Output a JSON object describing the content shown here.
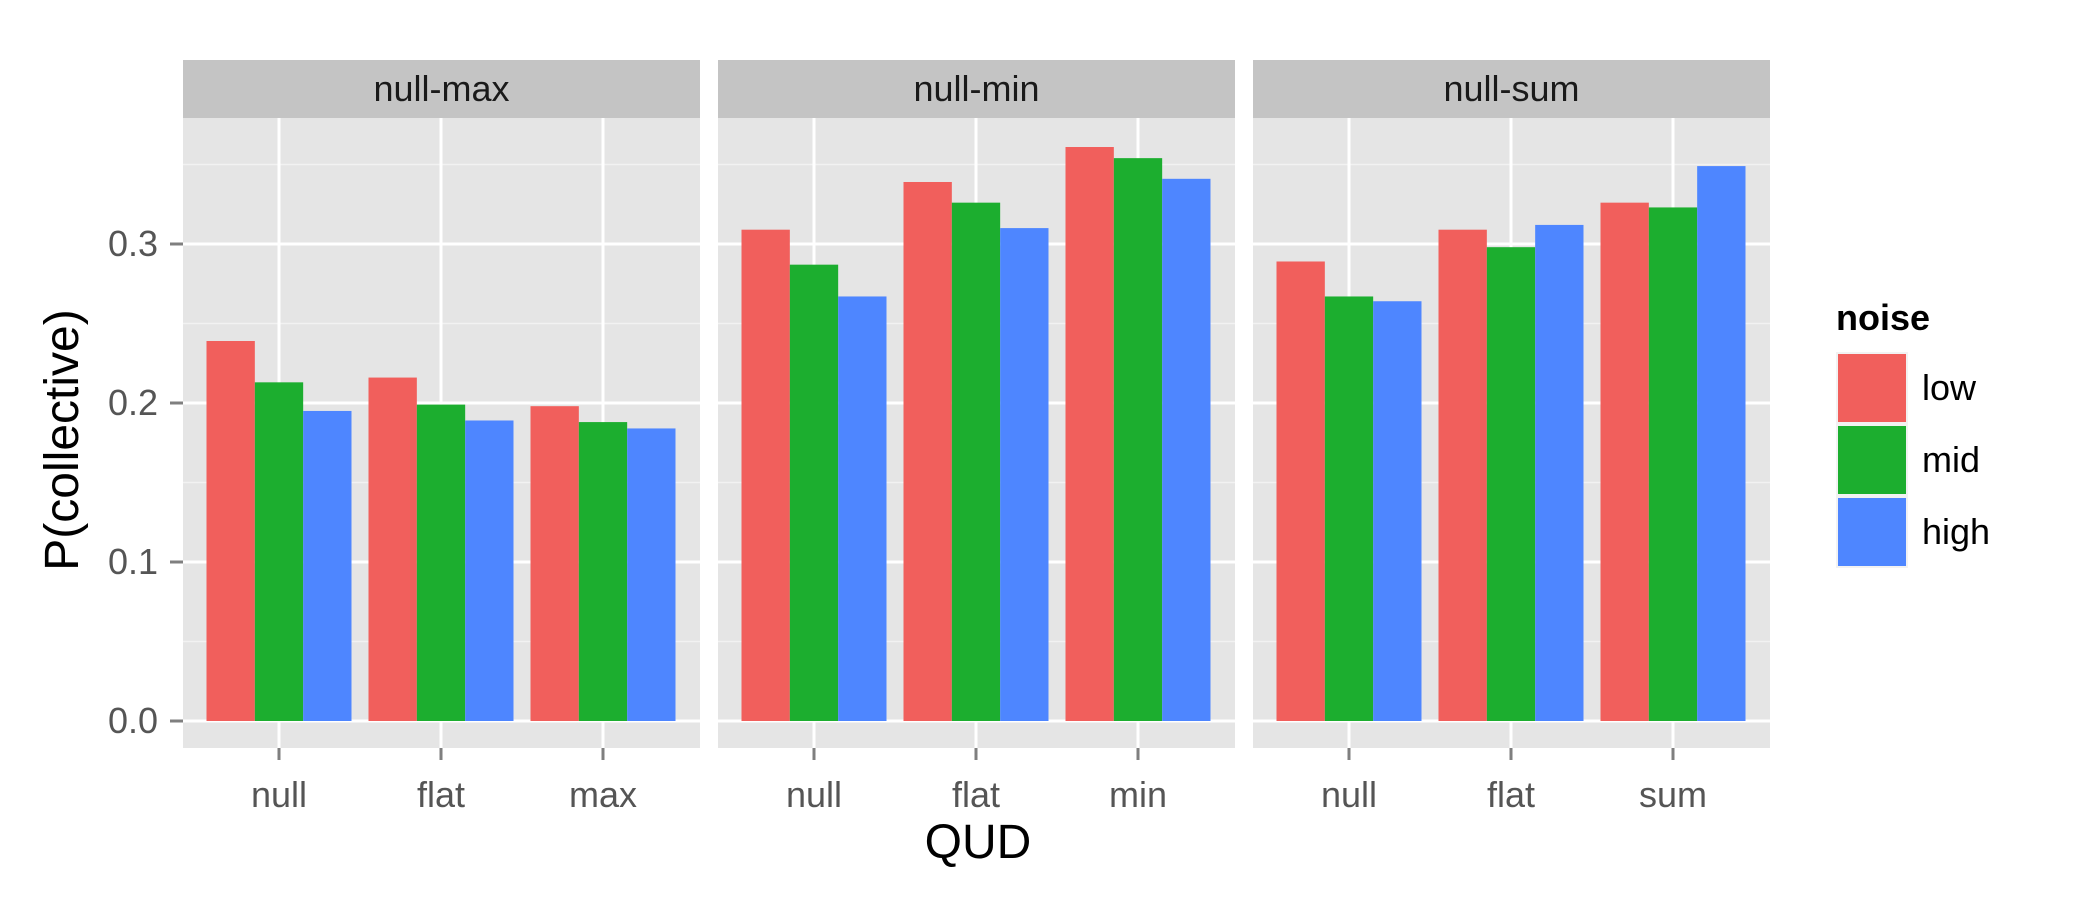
{
  "chart_data": {
    "type": "bar",
    "xlabel": "QUD",
    "ylabel": "P(collective)",
    "ylim": [
      0,
      0.38
    ],
    "yticks": [
      0.0,
      0.1,
      0.2,
      0.3
    ],
    "ytick_labels": [
      "0.0",
      "0.1",
      "0.2",
      "0.3"
    ],
    "legend": {
      "title": "noise",
      "entries": [
        "low",
        "mid",
        "high"
      ],
      "position": "right"
    },
    "colors": {
      "low": "#F15F5C",
      "mid": "#1CAE2F",
      "high": "#4E86FF"
    },
    "grid": true,
    "facets": [
      {
        "title": "null-max",
        "categories": [
          "null",
          "flat",
          "max"
        ],
        "series": [
          {
            "name": "low",
            "values": [
              0.239,
              0.216,
              0.198
            ]
          },
          {
            "name": "mid",
            "values": [
              0.213,
              0.199,
              0.188
            ]
          },
          {
            "name": "high",
            "values": [
              0.195,
              0.189,
              0.184
            ]
          }
        ]
      },
      {
        "title": "null-min",
        "categories": [
          "null",
          "flat",
          "min"
        ],
        "series": [
          {
            "name": "low",
            "values": [
              0.309,
              0.339,
              0.361
            ]
          },
          {
            "name": "mid",
            "values": [
              0.287,
              0.326,
              0.354
            ]
          },
          {
            "name": "high",
            "values": [
              0.267,
              0.31,
              0.341
            ]
          }
        ]
      },
      {
        "title": "null-sum",
        "categories": [
          "null",
          "flat",
          "sum"
        ],
        "series": [
          {
            "name": "low",
            "values": [
              0.289,
              0.309,
              0.326
            ]
          },
          {
            "name": "mid",
            "values": [
              0.267,
              0.298,
              0.323
            ]
          },
          {
            "name": "high",
            "values": [
              0.264,
              0.312,
              0.349
            ]
          }
        ]
      }
    ]
  }
}
